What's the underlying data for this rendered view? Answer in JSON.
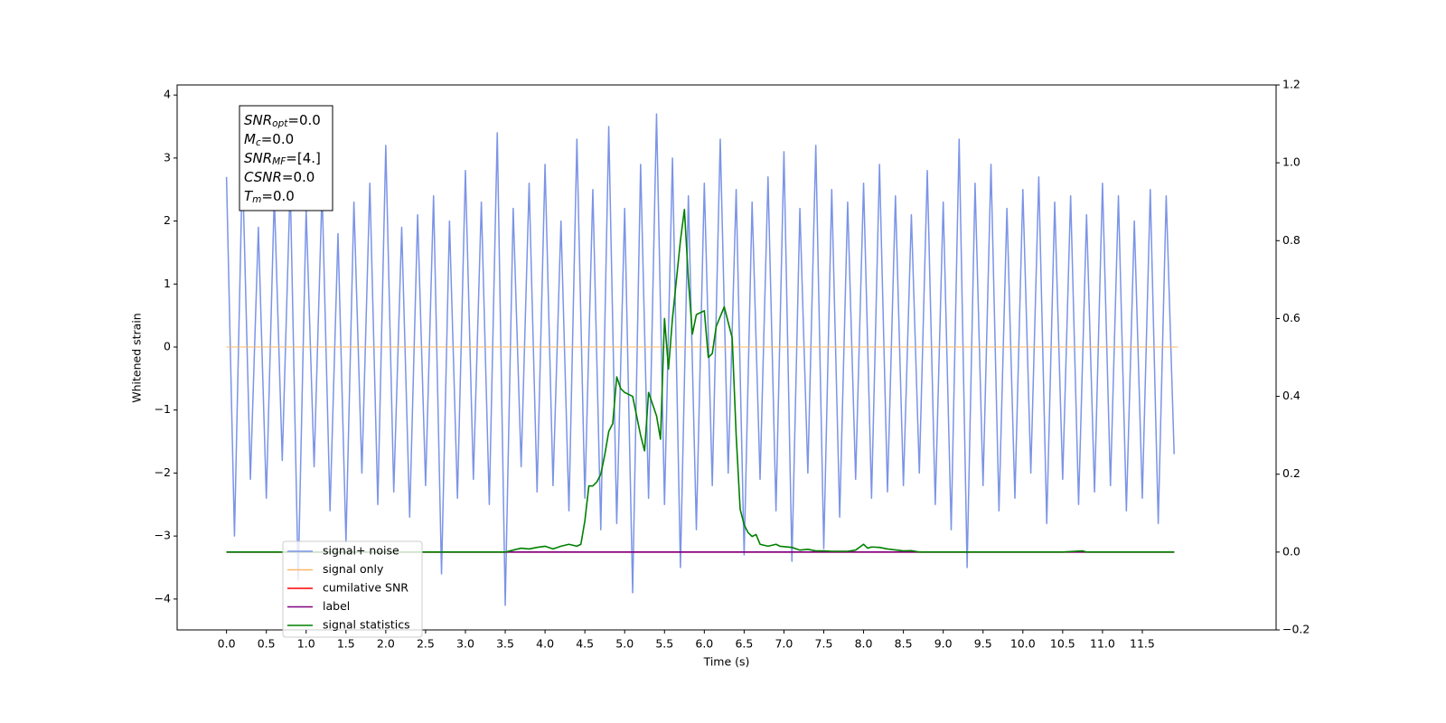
{
  "chart_data": {
    "type": "line",
    "xlabel": "Time (s)",
    "ylabel": "Whitened strain",
    "xlim": [
      -0.62,
      13.18
    ],
    "ylim": [
      -4.49,
      4.16
    ],
    "y2lim": [
      -0.2,
      1.2
    ],
    "xticks": [
      {
        "value": 0,
        "label": "0.0"
      },
      {
        "value": 0.5,
        "label": "0.5"
      },
      {
        "value": 1,
        "label": "1.0"
      },
      {
        "value": 1.5,
        "label": "1.5"
      },
      {
        "value": 2,
        "label": "2.0"
      },
      {
        "value": 2.5,
        "label": "2.5"
      },
      {
        "value": 3,
        "label": "3.0"
      },
      {
        "value": 3.5,
        "label": "3.5"
      },
      {
        "value": 4,
        "label": "4.0"
      },
      {
        "value": 4.5,
        "label": "4.5"
      },
      {
        "value": 5,
        "label": "5.0"
      },
      {
        "value": 5.5,
        "label": "5.5"
      },
      {
        "value": 6,
        "label": "6.0"
      },
      {
        "value": 6.5,
        "label": "6.5"
      },
      {
        "value": 7,
        "label": "7.0"
      },
      {
        "value": 7.5,
        "label": "7.5"
      },
      {
        "value": 8,
        "label": "8.0"
      },
      {
        "value": 8.5,
        "label": "8.5"
      },
      {
        "value": 9,
        "label": "9.0"
      },
      {
        "value": 9.5,
        "label": "9.5"
      },
      {
        "value": 10,
        "label": "10.0"
      },
      {
        "value": 10.5,
        "label": "10.5"
      },
      {
        "value": 11,
        "label": "11.0"
      },
      {
        "value": 11.5,
        "label": "11.5"
      }
    ],
    "yticks": [
      {
        "value": -4,
        "label": "−4"
      },
      {
        "value": -3,
        "label": "−3"
      },
      {
        "value": -2,
        "label": "−2"
      },
      {
        "value": -1,
        "label": "−1"
      },
      0,
      1,
      2,
      3,
      4
    ],
    "y2ticks": [
      {
        "value": -0.2,
        "label": "−0.2"
      },
      {
        "value": 0,
        "label": "0.0"
      },
      0.2,
      0.4,
      0.6,
      0.8,
      {
        "value": 1,
        "label": "1.0"
      },
      1.2
    ],
    "annotation": [
      {
        "symbol": "SNR",
        "sub": "opt",
        "text": "=0.0"
      },
      {
        "symbol": "M",
        "sub": "c",
        "text": "=0.0"
      },
      {
        "symbol": "SNR",
        "sub": "MF",
        "text": "=[4.]"
      },
      {
        "symbol": "CSNR",
        "sub": "",
        "text": "=0.0"
      },
      {
        "symbol": "T",
        "sub": "m",
        "text": "=0.0"
      }
    ],
    "series": [
      {
        "name": "signal+ noise",
        "color": "#7b94e6",
        "axis": "y",
        "x": [
          0,
          0.1,
          0.2,
          0.3,
          0.4,
          0.5,
          0.6,
          0.7,
          0.8,
          0.9,
          1,
          1.1,
          1.2,
          1.3,
          1.4,
          1.5,
          1.6,
          1.7,
          1.8,
          1.9,
          2,
          2.1,
          2.2,
          2.3,
          2.4,
          2.5,
          2.6,
          2.7,
          2.8,
          2.9,
          3,
          3.1,
          3.2,
          3.3,
          3.4,
          3.5,
          3.6,
          3.7,
          3.8,
          3.9,
          4,
          4.1,
          4.2,
          4.3,
          4.4,
          4.5,
          4.6,
          4.7,
          4.8,
          4.9,
          5,
          5.1,
          5.2,
          5.3,
          5.4,
          5.5,
          5.6,
          5.7,
          5.8,
          5.9,
          6,
          6.1,
          6.2,
          6.3,
          6.4,
          6.5,
          6.6,
          6.7,
          6.8,
          6.9,
          7,
          7.1,
          7.2,
          7.3,
          7.4,
          7.5,
          7.6,
          7.7,
          7.8,
          7.9,
          8,
          8.1,
          8.2,
          8.3,
          8.4,
          8.5,
          8.6,
          8.7,
          8.8,
          8.9,
          9,
          9.1,
          9.2,
          9.3,
          9.4,
          9.5,
          9.6,
          9.7,
          9.8,
          9.9,
          10,
          10.1,
          10.2,
          10.3,
          10.4,
          10.5,
          10.6,
          10.7,
          10.8,
          10.9,
          11,
          11.1,
          11.2,
          11.3,
          11.4,
          11.5,
          11.6,
          11.7,
          11.8,
          11.9
        ],
        "values": [
          2.7,
          -3.0,
          2.9,
          -2.1,
          1.9,
          -2.4,
          2.4,
          -1.8,
          2.6,
          -3.7,
          2.2,
          -1.9,
          2.5,
          -2.6,
          1.8,
          -3.1,
          2.3,
          -2.0,
          2.6,
          -2.5,
          3.2,
          -2.3,
          1.9,
          -2.7,
          2.1,
          -2.2,
          2.4,
          -3.6,
          2.0,
          -2.4,
          2.8,
          -2.1,
          2.3,
          -2.5,
          3.4,
          -4.1,
          2.2,
          -1.9,
          2.6,
          -2.3,
          2.9,
          -2.2,
          2.0,
          -2.6,
          3.3,
          -2.4,
          2.5,
          -2.9,
          3.5,
          -2.8,
          2.2,
          -3.9,
          2.9,
          -2.4,
          3.7,
          -2.5,
          3.0,
          -3.5,
          2.4,
          -2.9,
          2.6,
          -2.2,
          3.3,
          -2.0,
          2.5,
          -3.3,
          2.3,
          -2.1,
          2.7,
          -2.6,
          3.1,
          -3.4,
          2.2,
          -2.0,
          3.2,
          -3.2,
          2.5,
          -2.7,
          2.3,
          -2.1,
          2.6,
          -2.4,
          2.9,
          -2.3,
          2.4,
          -2.2,
          2.1,
          -2.0,
          2.8,
          -2.5,
          2.3,
          -2.9,
          3.3,
          -3.5,
          2.6,
          -2.2,
          2.9,
          -2.6,
          2.2,
          -2.4,
          2.5,
          -2.0,
          2.7,
          -2.8,
          2.3,
          -2.1,
          2.4,
          -2.5,
          2.1,
          -2.3,
          2.6,
          -2.2,
          2.4,
          -2.6,
          2.0,
          -2.4,
          2.5,
          -2.8,
          2.4,
          -1.7
        ]
      },
      {
        "name": "signal only",
        "color": "#f9b86a",
        "axis": "y",
        "x": [
          0,
          11.95
        ],
        "values": [
          0,
          0
        ]
      },
      {
        "name": "cumilative SNR",
        "color": "#ff0000",
        "axis": "y2",
        "x": [
          0,
          11.9
        ],
        "values": [
          0,
          0
        ]
      },
      {
        "name": "label",
        "color": "#800080",
        "axis": "y2",
        "x": [
          0,
          11.9
        ],
        "values": [
          0,
          0
        ]
      },
      {
        "name": "signal statistics",
        "color": "#008000",
        "axis": "y2",
        "x": [
          0,
          0.5,
          1,
          1.5,
          2,
          2.5,
          3,
          3.5,
          3.6,
          3.7,
          3.8,
          3.9,
          4.0,
          4.1,
          4.2,
          4.3,
          4.4,
          4.45,
          4.5,
          4.55,
          4.6,
          4.65,
          4.7,
          4.75,
          4.8,
          4.85,
          4.9,
          4.95,
          5.0,
          5.1,
          5.2,
          5.25,
          5.3,
          5.4,
          5.45,
          5.5,
          5.55,
          5.6,
          5.7,
          5.75,
          5.8,
          5.85,
          5.9,
          6.0,
          6.05,
          6.1,
          6.15,
          6.25,
          6.35,
          6.4,
          6.45,
          6.5,
          6.55,
          6.6,
          6.65,
          6.7,
          6.8,
          6.9,
          6.95,
          7.1,
          7.2,
          7.3,
          7.4,
          7.5,
          7.6,
          7.8,
          7.9,
          8.0,
          8.05,
          8.1,
          8.2,
          8.3,
          8.5,
          8.6,
          8.7,
          9.5,
          10.5,
          10.75,
          10.8,
          11.4,
          11.9
        ],
        "values": [
          0,
          0,
          0,
          0,
          0,
          0,
          0,
          0,
          0.005,
          0.01,
          0.008,
          0.012,
          0.015,
          0.008,
          0.015,
          0.02,
          0.015,
          0.02,
          0.08,
          0.17,
          0.17,
          0.18,
          0.2,
          0.25,
          0.31,
          0.33,
          0.45,
          0.42,
          0.41,
          0.4,
          0.3,
          0.26,
          0.41,
          0.35,
          0.29,
          0.6,
          0.47,
          0.6,
          0.8,
          0.88,
          0.7,
          0.56,
          0.61,
          0.62,
          0.5,
          0.51,
          0.58,
          0.63,
          0.55,
          0.3,
          0.11,
          0.07,
          0.05,
          0.04,
          0.045,
          0.02,
          0.015,
          0.02,
          0.015,
          0.012,
          0.005,
          0.007,
          0.003,
          0.003,
          0.002,
          0.002,
          0.005,
          0.02,
          0.01,
          0.013,
          0.012,
          0.008,
          0.003,
          0.0035,
          0,
          0,
          0,
          0.003,
          0,
          0,
          0
        ]
      }
    ]
  }
}
